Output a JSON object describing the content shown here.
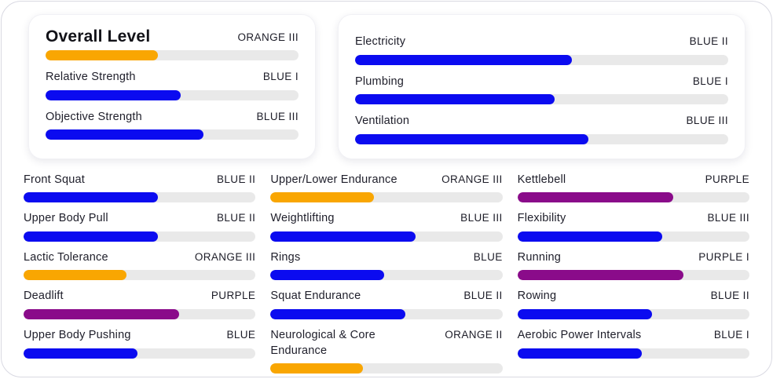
{
  "colors": {
    "orange": "#f9a602",
    "blue": "#0b0bf0",
    "purple": "#8a0b8a",
    "track": "#e9e9e9",
    "text": "#1e1e2a"
  },
  "overall_card": {
    "title_row": {
      "label": "Overall Level",
      "level": "ORANGE III",
      "percent": 44.5,
      "color": "orange"
    },
    "rows": [
      {
        "label": "Relative Strength",
        "level": "BLUE I",
        "percent": 53.5,
        "color": "blue"
      },
      {
        "label": "Objective Strength",
        "level": "BLUE III",
        "percent": 62.5,
        "color": "blue"
      }
    ]
  },
  "utility_card": {
    "rows": [
      {
        "label": "Electricity",
        "level": "BLUE II",
        "percent": 58,
        "color": "blue"
      },
      {
        "label": "Plumbing",
        "level": "BLUE I",
        "percent": 53.5,
        "color": "blue"
      },
      {
        "label": "Ventilation",
        "level": "BLUE III",
        "percent": 62.5,
        "color": "blue"
      }
    ]
  },
  "columns": [
    {
      "rows": [
        {
          "label": "Front Squat",
          "level": "BLUE II",
          "percent": 58,
          "color": "blue"
        },
        {
          "label": "Upper Body Pull",
          "level": "BLUE II",
          "percent": 58,
          "color": "blue"
        },
        {
          "label": "Lactic Tolerance",
          "level": "ORANGE III",
          "percent": 44.5,
          "color": "orange"
        },
        {
          "label": "Deadlift",
          "level": "PURPLE",
          "percent": 67,
          "color": "purple"
        },
        {
          "label": "Upper Body Pushing",
          "level": "BLUE",
          "percent": 49,
          "color": "blue"
        }
      ]
    },
    {
      "rows": [
        {
          "label": "Upper/Lower Endurance",
          "level": "ORANGE III",
          "percent": 44.5,
          "color": "orange"
        },
        {
          "label": "Weightlifting",
          "level": "BLUE III",
          "percent": 62.5,
          "color": "blue"
        },
        {
          "label": "Rings",
          "level": "BLUE",
          "percent": 49,
          "color": "blue"
        },
        {
          "label": "Squat Endurance",
          "level": "BLUE II",
          "percent": 58,
          "color": "blue"
        },
        {
          "label": "Neurological & Core Endurance",
          "level": "ORANGE II",
          "percent": 40,
          "color": "orange"
        }
      ]
    },
    {
      "rows": [
        {
          "label": "Kettlebell",
          "level": "PURPLE",
          "percent": 67,
          "color": "purple"
        },
        {
          "label": "Flexibility",
          "level": "BLUE III",
          "percent": 62.5,
          "color": "blue"
        },
        {
          "label": "Running",
          "level": "PURPLE I",
          "percent": 71.5,
          "color": "purple"
        },
        {
          "label": "Rowing",
          "level": "BLUE II",
          "percent": 58,
          "color": "blue"
        },
        {
          "label": "Aerobic Power Intervals",
          "level": "BLUE I",
          "percent": 53.5,
          "color": "blue"
        }
      ]
    }
  ]
}
